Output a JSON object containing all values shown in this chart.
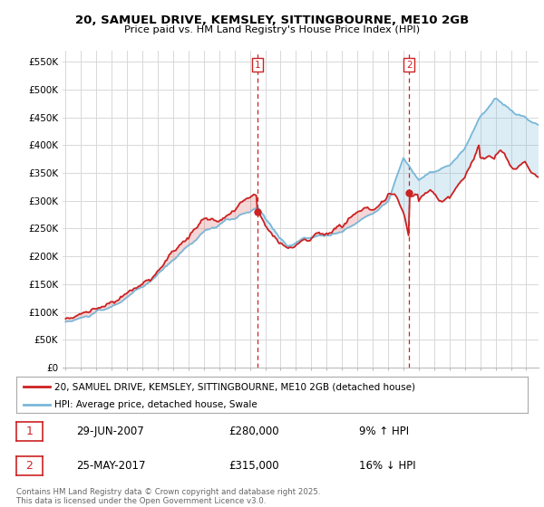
{
  "title_line1": "20, SAMUEL DRIVE, KEMSLEY, SITTINGBOURNE, ME10 2GB",
  "title_line2": "Price paid vs. HM Land Registry's House Price Index (HPI)",
  "ylim": [
    0,
    570000
  ],
  "yticks": [
    0,
    50000,
    100000,
    150000,
    200000,
    250000,
    300000,
    350000,
    400000,
    450000,
    500000,
    550000
  ],
  "ytick_labels": [
    "£0",
    "£50K",
    "£100K",
    "£150K",
    "£200K",
    "£250K",
    "£300K",
    "£350K",
    "£400K",
    "£450K",
    "£500K",
    "£550K"
  ],
  "hpi_color": "#7ab8d9",
  "price_color": "#cc2222",
  "sale1_year": 2007.5,
  "sale1_price": 280000,
  "sale2_year": 2017.38,
  "sale2_price": 315000,
  "legend_line1": "20, SAMUEL DRIVE, KEMSLEY, SITTINGBOURNE, ME10 2GB (detached house)",
  "legend_line2": "HPI: Average price, detached house, Swale",
  "ann1_date": "29-JUN-2007",
  "ann1_price": "£280,000",
  "ann1_hpi": "9% ↑ HPI",
  "ann2_date": "25-MAY-2017",
  "ann2_price": "£315,000",
  "ann2_hpi": "16% ↓ HPI",
  "footnote": "Contains HM Land Registry data © Crown copyright and database right 2025.\nThis data is licensed under the Open Government Licence v3.0.",
  "background_color": "#ffffff",
  "grid_color": "#d8d8d8"
}
